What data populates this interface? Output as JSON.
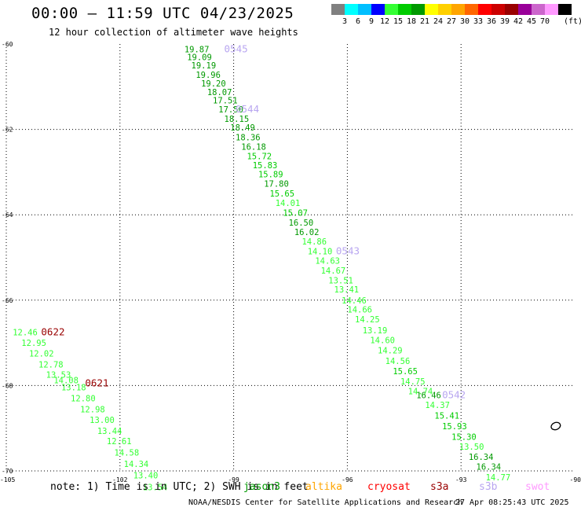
{
  "header": {
    "title": "00:00 – 11:59 UTC 04/23/2025",
    "subtitle": "12 hour collection of altimeter wave heights"
  },
  "legend": {
    "unit": "(ft)",
    "bins": [
      {
        "label": "",
        "color": "#808080"
      },
      {
        "label": "3",
        "color": "#00ffff"
      },
      {
        "label": "6",
        "color": "#00bfff"
      },
      {
        "label": "9",
        "color": "#0000ff"
      },
      {
        "label": "12",
        "color": "#33ff33"
      },
      {
        "label": "15",
        "color": "#00cc00"
      },
      {
        "label": "18",
        "color": "#009900"
      },
      {
        "label": "21",
        "color": "#ffff00"
      },
      {
        "label": "24",
        "color": "#ffd000"
      },
      {
        "label": "27",
        "color": "#ffa500"
      },
      {
        "label": "30",
        "color": "#ff6600"
      },
      {
        "label": "33",
        "color": "#ff0000"
      },
      {
        "label": "36",
        "color": "#cc0000"
      },
      {
        "label": "39",
        "color": "#990000"
      },
      {
        "label": "42",
        "color": "#990099"
      },
      {
        "label": "45",
        "color": "#cc66cc"
      },
      {
        "label": "70",
        "color": "#ff99ff"
      },
      {
        "label": "",
        "color": "#000000"
      }
    ]
  },
  "map": {
    "lon_range": [
      -105,
      -90
    ],
    "lat_range": [
      -70,
      -60
    ],
    "lon_ticks": [
      {
        "value": -105,
        "label": "-105"
      },
      {
        "value": -102,
        "label": "-102"
      },
      {
        "value": -99,
        "label": "-99"
      },
      {
        "value": -96,
        "label": "-96"
      },
      {
        "value": -93,
        "label": "-93"
      },
      {
        "value": -90,
        "label": "-90"
      }
    ],
    "lat_ticks": [
      {
        "value": -60,
        "label": "-60"
      },
      {
        "value": -62,
        "label": "-62"
      },
      {
        "value": -64,
        "label": "-64"
      },
      {
        "value": -66,
        "label": "-66"
      },
      {
        "value": -68,
        "label": "-68"
      },
      {
        "value": -70,
        "label": "-70"
      }
    ],
    "colors": {
      "dark_green": "#009900",
      "green": "#00cc00",
      "light_green": "#33ff33",
      "s3a": "#990000",
      "s3b": "#b8a6f0"
    },
    "track_east": [
      {
        "lon": -100.3,
        "lat": -60.12,
        "v": "19.87",
        "c": "dark_green"
      },
      {
        "lon": -100.23,
        "lat": -60.3,
        "v": "19.09",
        "c": "dark_green"
      },
      {
        "lon": -100.12,
        "lat": -60.5,
        "v": "19.19",
        "c": "dark_green"
      },
      {
        "lon": -100.0,
        "lat": -60.72,
        "v": "19.96",
        "c": "dark_green"
      },
      {
        "lon": -99.86,
        "lat": -60.92,
        "v": "19.20",
        "c": "dark_green"
      },
      {
        "lon": -99.7,
        "lat": -61.12,
        "v": "18.07",
        "c": "dark_green"
      },
      {
        "lon": -99.55,
        "lat": -61.32,
        "v": "17.51",
        "c": "dark_green"
      },
      {
        "lon": -99.4,
        "lat": -61.53,
        "v": "17.50",
        "c": "dark_green"
      },
      {
        "lon": -99.25,
        "lat": -61.75,
        "v": "18.15",
        "c": "dark_green"
      },
      {
        "lon": -99.09,
        "lat": -61.95,
        "v": "18.49",
        "c": "dark_green"
      },
      {
        "lon": -98.95,
        "lat": -62.18,
        "v": "18.36",
        "c": "dark_green"
      },
      {
        "lon": -98.8,
        "lat": -62.4,
        "v": "16.18",
        "c": "dark_green"
      },
      {
        "lon": -98.65,
        "lat": -62.62,
        "v": "15.72",
        "c": "green"
      },
      {
        "lon": -98.5,
        "lat": -62.84,
        "v": "15.83",
        "c": "green"
      },
      {
        "lon": -98.35,
        "lat": -63.05,
        "v": "15.89",
        "c": "green"
      },
      {
        "lon": -98.2,
        "lat": -63.27,
        "v": "17.80",
        "c": "dark_green"
      },
      {
        "lon": -98.05,
        "lat": -63.5,
        "v": "15.65",
        "c": "green"
      },
      {
        "lon": -97.9,
        "lat": -63.72,
        "v": "14.01",
        "c": "light_green"
      },
      {
        "lon": -97.7,
        "lat": -63.95,
        "v": "15.07",
        "c": "green"
      },
      {
        "lon": -97.55,
        "lat": -64.18,
        "v": "16.50",
        "c": "dark_green"
      },
      {
        "lon": -97.4,
        "lat": -64.4,
        "v": "16.02",
        "c": "dark_green"
      },
      {
        "lon": -97.2,
        "lat": -64.62,
        "v": "14.86",
        "c": "light_green"
      },
      {
        "lon": -97.05,
        "lat": -64.85,
        "v": "14.10",
        "c": "light_green"
      },
      {
        "lon": -96.85,
        "lat": -65.07,
        "v": "14.63",
        "c": "light_green"
      },
      {
        "lon": -96.7,
        "lat": -65.3,
        "v": "14.67",
        "c": "light_green"
      },
      {
        "lon": -96.5,
        "lat": -65.53,
        "v": "13.51",
        "c": "light_green"
      },
      {
        "lon": -96.35,
        "lat": -65.75,
        "v": "13.41",
        "c": "light_green"
      },
      {
        "lon": -96.15,
        "lat": -66.0,
        "v": "14.46",
        "c": "light_green"
      },
      {
        "lon": -96.0,
        "lat": -66.22,
        "v": "14.66",
        "c": "light_green"
      },
      {
        "lon": -95.8,
        "lat": -66.45,
        "v": "14.25",
        "c": "light_green"
      },
      {
        "lon": -95.6,
        "lat": -66.7,
        "v": "13.19",
        "c": "light_green"
      },
      {
        "lon": -95.4,
        "lat": -66.93,
        "v": "14.60",
        "c": "light_green"
      },
      {
        "lon": -95.2,
        "lat": -67.17,
        "v": "14.29",
        "c": "light_green"
      },
      {
        "lon": -95.0,
        "lat": -67.42,
        "v": "14.56",
        "c": "light_green"
      },
      {
        "lon": -94.8,
        "lat": -67.66,
        "v": "15.65",
        "c": "green"
      },
      {
        "lon": -94.6,
        "lat": -67.9,
        "v": "14.75",
        "c": "light_green"
      },
      {
        "lon": -94.4,
        "lat": -68.13,
        "v": "14.74",
        "c": "light_green"
      },
      {
        "lon": -94.18,
        "lat": -68.22,
        "v": "16.46",
        "c": "dark_green"
      },
      {
        "lon": -93.95,
        "lat": -68.45,
        "v": "14.37",
        "c": "light_green"
      },
      {
        "lon": -93.7,
        "lat": -68.7,
        "v": "15.41",
        "c": "green"
      },
      {
        "lon": -93.5,
        "lat": -68.95,
        "v": "15.93",
        "c": "green"
      },
      {
        "lon": -93.25,
        "lat": -69.2,
        "v": "15.30",
        "c": "green"
      },
      {
        "lon": -93.05,
        "lat": -69.43,
        "v": "13.50",
        "c": "light_green"
      },
      {
        "lon": -92.8,
        "lat": -69.67,
        "v": "16.34",
        "c": "dark_green"
      },
      {
        "lon": -92.6,
        "lat": -69.9,
        "v": "16.34",
        "c": "dark_green"
      },
      {
        "lon": -92.35,
        "lat": -70.15,
        "v": "14.77",
        "c": "light_green"
      }
    ],
    "track_west": [
      {
        "lon": -104.83,
        "lat": -66.75,
        "v": "12.46",
        "c": "light_green"
      },
      {
        "lon": -104.6,
        "lat": -67.0,
        "v": "12.95",
        "c": "light_green"
      },
      {
        "lon": -104.4,
        "lat": -67.25,
        "v": "12.02",
        "c": "light_green"
      },
      {
        "lon": -104.15,
        "lat": -67.5,
        "v": "12.78",
        "c": "light_green"
      },
      {
        "lon": -103.95,
        "lat": -67.74,
        "v": "13.53",
        "c": "light_green"
      },
      {
        "lon": -103.75,
        "lat": -67.87,
        "v": "14.08",
        "c": "light_green"
      },
      {
        "lon": -103.55,
        "lat": -68.04,
        "v": "13.18",
        "c": "light_green"
      },
      {
        "lon": -103.3,
        "lat": -68.3,
        "v": "12.80",
        "c": "light_green"
      },
      {
        "lon": -103.05,
        "lat": -68.55,
        "v": "12.98",
        "c": "light_green"
      },
      {
        "lon": -102.8,
        "lat": -68.8,
        "v": "13.00",
        "c": "light_green"
      },
      {
        "lon": -102.6,
        "lat": -69.06,
        "v": "13.44",
        "c": "light_green"
      },
      {
        "lon": -102.35,
        "lat": -69.3,
        "v": "12.61",
        "c": "light_green"
      },
      {
        "lon": -102.15,
        "lat": -69.57,
        "v": "14.58",
        "c": "light_green"
      },
      {
        "lon": -101.9,
        "lat": -69.83,
        "v": "14.34",
        "c": "light_green"
      },
      {
        "lon": -101.65,
        "lat": -70.1,
        "v": "13.40",
        "c": "light_green"
      },
      {
        "lon": -101.4,
        "lat": -70.38,
        "v": "13.54",
        "c": "light_green"
      }
    ],
    "time_labels": [
      {
        "lon": -99.25,
        "lat": -60.12,
        "t": "0545",
        "c": "s3b"
      },
      {
        "lon": -98.95,
        "lat": -61.53,
        "t": "0544",
        "c": "s3b"
      },
      {
        "lon": -96.3,
        "lat": -64.85,
        "t": "0543",
        "c": "s3b"
      },
      {
        "lon": -93.5,
        "lat": -68.22,
        "t": "0542",
        "c": "s3b"
      },
      {
        "lon": -104.08,
        "lat": -66.75,
        "t": "0622",
        "c": "s3a"
      },
      {
        "lon": -102.92,
        "lat": -67.95,
        "t": "0621",
        "c": "s3a"
      }
    ]
  },
  "footer": {
    "note": "note: 1) Time is in UTC; 2) SWH is in feet",
    "satellites": [
      {
        "name": "jason3",
        "color": "#009900"
      },
      {
        "name": "altika",
        "color": "#ffa500"
      },
      {
        "name": "cryosat",
        "color": "#ff0000"
      },
      {
        "name": "s3a",
        "color": "#990000"
      },
      {
        "name": "s3b",
        "color": "#b8a6f0"
      },
      {
        "name": "swot",
        "color": "#ff99ff"
      }
    ],
    "credit": "NOAA/NESDIS Center for Satellite Applications and Research",
    "timestamp": "27 Apr 08:25:43 UTC 2025"
  }
}
